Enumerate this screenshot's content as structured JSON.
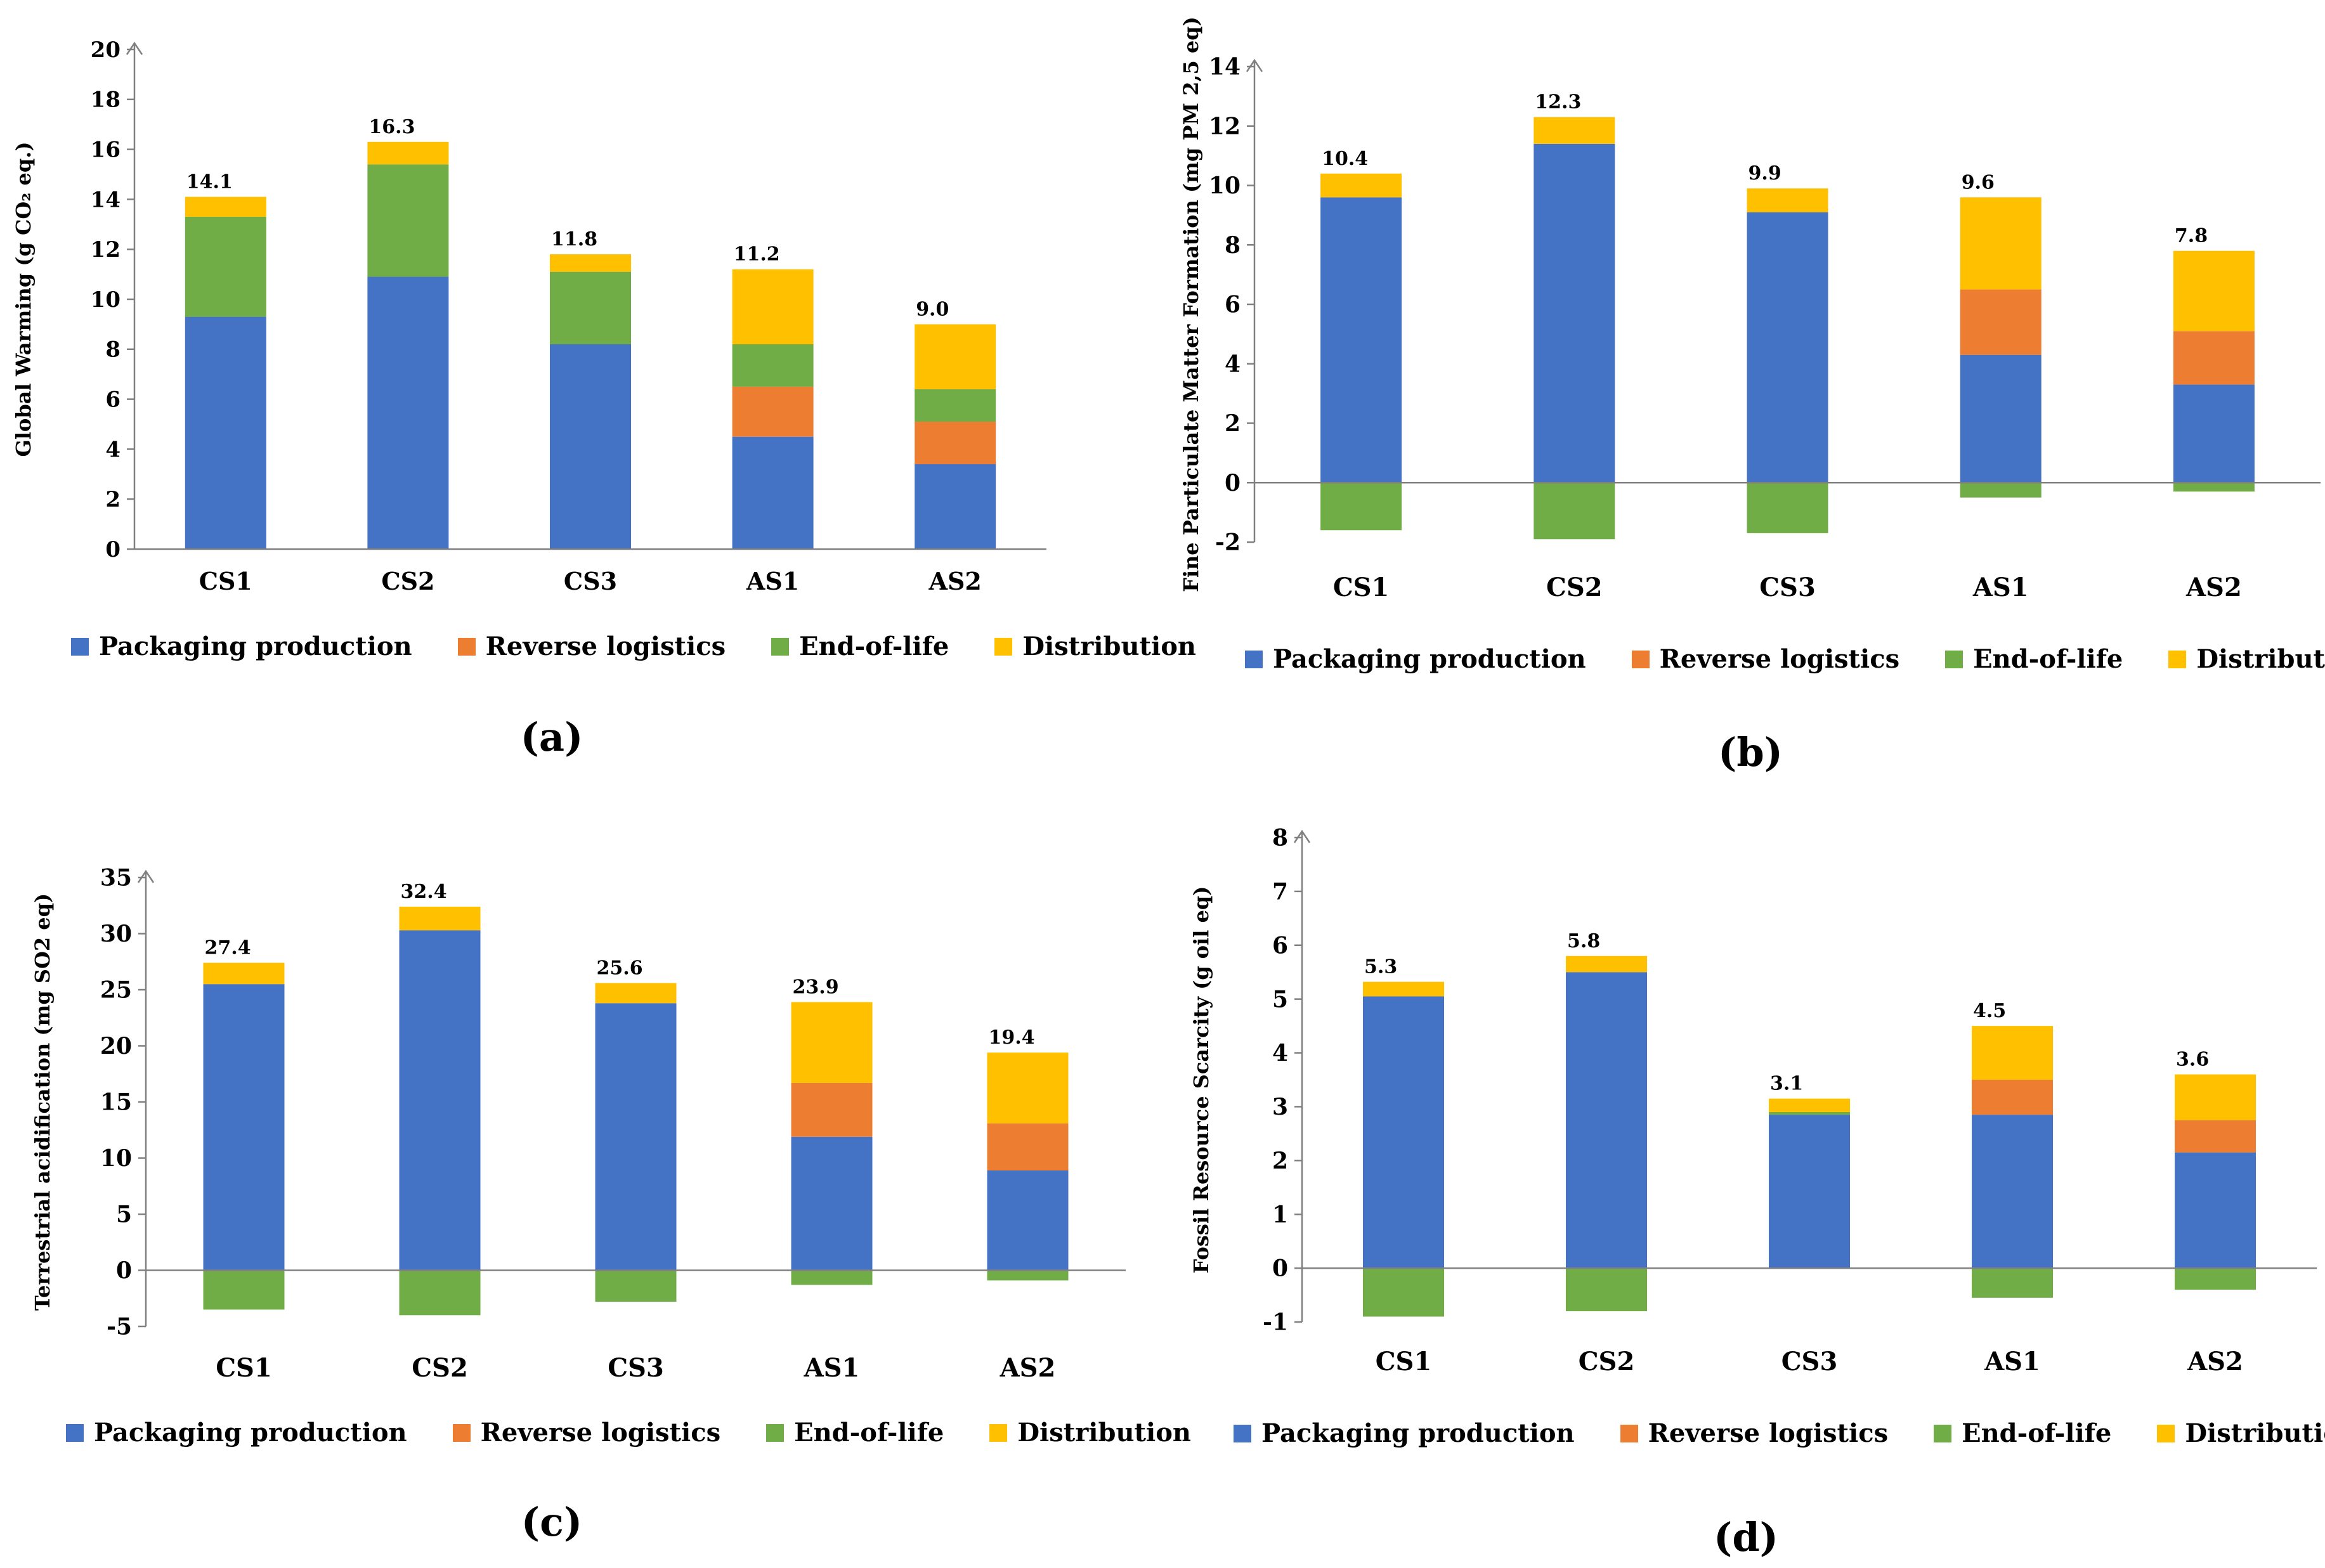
{
  "chart_data": [
    {
      "id": "a",
      "type": "bar",
      "stacked": true,
      "panel_label": "(a)",
      "ylabel": "Global Warming (g CO₂ eq.)",
      "ylim": [
        0,
        20
      ],
      "yticks": [
        "0",
        "2",
        "4",
        "6",
        "8",
        "10",
        "12",
        "14",
        "16",
        "18",
        "20"
      ],
      "categories": [
        "CS1",
        "CS2",
        "CS3",
        "AS1",
        "AS2"
      ],
      "series": [
        {
          "name": "Packaging production",
          "values": [
            9.3,
            10.9,
            8.2,
            4.5,
            3.4
          ]
        },
        {
          "name": "Reverse logistics",
          "values": [
            0,
            0,
            0,
            2.0,
            1.7
          ]
        },
        {
          "name": "End-of-life",
          "values": [
            4.0,
            4.5,
            2.9,
            1.7,
            1.3
          ]
        },
        {
          "name": "Distribution",
          "values": [
            0.8,
            0.9,
            0.7,
            3.0,
            2.6
          ]
        }
      ],
      "totals": [
        "14.1",
        "16.3",
        "11.8",
        "11.2",
        "9.0"
      ]
    },
    {
      "id": "b",
      "type": "bar",
      "stacked": true,
      "panel_label": "(b)",
      "ylabel": "Fine Particulate Matter Formation (mg PM 2,5 eq)",
      "ylim": [
        -2,
        14
      ],
      "yticks": [
        "-2",
        "0",
        "2",
        "4",
        "6",
        "8",
        "10",
        "12",
        "14"
      ],
      "categories": [
        "CS1",
        "CS2",
        "CS3",
        "AS1",
        "AS2"
      ],
      "series": [
        {
          "name": "Packaging production",
          "values": [
            9.6,
            11.4,
            9.1,
            4.3,
            3.3
          ]
        },
        {
          "name": "Reverse logistics",
          "values": [
            0,
            0,
            0,
            2.2,
            1.8
          ]
        },
        {
          "name": "End-of-life",
          "values": [
            -1.6,
            -1.9,
            -1.7,
            -0.5,
            -0.3
          ]
        },
        {
          "name": "Distribution",
          "values": [
            0.8,
            0.9,
            0.8,
            3.1,
            2.7
          ]
        }
      ],
      "totals": [
        "10.4",
        "12.3",
        "9.9",
        "9.6",
        "7.8"
      ]
    },
    {
      "id": "c",
      "type": "bar",
      "stacked": true,
      "panel_label": "(c)",
      "ylabel": "Terrestrial acidification (mg SO2 eq)",
      "ylim": [
        -5,
        35
      ],
      "yticks": [
        "-5",
        "0",
        "5",
        "10",
        "15",
        "20",
        "25",
        "30",
        "35"
      ],
      "categories": [
        "CS1",
        "CS2",
        "CS3",
        "AS1",
        "AS2"
      ],
      "series": [
        {
          "name": "Packaging production",
          "values": [
            25.5,
            30.3,
            23.8,
            11.9,
            8.9
          ]
        },
        {
          "name": "Reverse logistics",
          "values": [
            0,
            0,
            0,
            4.8,
            4.2
          ]
        },
        {
          "name": "End-of-life",
          "values": [
            -3.5,
            -4.0,
            -2.8,
            -1.3,
            -0.9
          ]
        },
        {
          "name": "Distribution",
          "values": [
            1.9,
            2.1,
            1.8,
            7.2,
            6.3
          ]
        }
      ],
      "totals": [
        "27.4",
        "32.4",
        "25.6",
        "23.9",
        "19.4"
      ]
    },
    {
      "id": "d",
      "type": "bar",
      "stacked": true,
      "panel_label": "(d)",
      "ylabel": "Fossil Resource Scarcity (g oil eq)",
      "ylim": [
        -1,
        8
      ],
      "yticks": [
        "-1",
        "0",
        "1",
        "2",
        "3",
        "4",
        "5",
        "6",
        "7",
        "8"
      ],
      "categories": [
        "CS1",
        "CS2",
        "CS3",
        "AS1",
        "AS2"
      ],
      "series": [
        {
          "name": "Packaging production",
          "values": [
            5.05,
            5.5,
            2.85,
            2.85,
            2.15
          ]
        },
        {
          "name": "Reverse logistics",
          "values": [
            0,
            0,
            0,
            0.65,
            0.6
          ]
        },
        {
          "name": "End-of-life",
          "values": [
            -0.9,
            -0.8,
            0.05,
            -0.55,
            -0.4
          ]
        },
        {
          "name": "Distribution",
          "values": [
            0.27,
            0.3,
            0.25,
            1.0,
            0.85
          ]
        }
      ],
      "totals": [
        "5.3",
        "5.8",
        "3.1",
        "4.5",
        "3.6"
      ]
    }
  ],
  "legend": {
    "items": [
      "Packaging production",
      "Reverse logistics",
      "End-of-life",
      "Distribution"
    ]
  },
  "colors": {
    "packaging_production": "#4472C4",
    "reverse_logistics": "#ED7D31",
    "end_of_life": "#70AD47",
    "distribution": "#FFC000",
    "axis": "#808080"
  }
}
